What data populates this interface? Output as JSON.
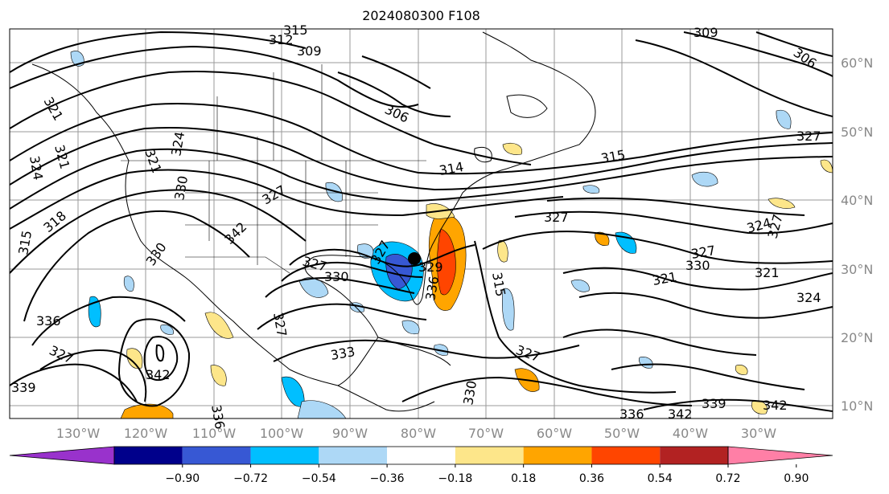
{
  "title": "2024080300 F108",
  "lon_labels": [
    "130°W",
    "120°W",
    "110°W",
    "100°W",
    "90°W",
    "80°W",
    "70°W",
    "60°W",
    "50°W",
    "40°W",
    "30°W"
  ],
  "lat_labels": [
    "60°N",
    "50°N",
    "40°N",
    "30°N",
    "20°N",
    "10°N"
  ],
  "contour_labels": [
    "315",
    "312",
    "309",
    "306",
    "309",
    "306",
    "327",
    "324",
    "321",
    "321",
    "324",
    "321",
    "315",
    "330",
    "342",
    "336",
    "318",
    "315",
    "330",
    "327",
    "330",
    "314",
    "327",
    "315",
    "324",
    "327",
    "327",
    "330",
    "321",
    "321",
    "324",
    "336",
    "327",
    "342",
    "339",
    "333",
    "327",
    "329",
    "336",
    "327",
    "330",
    "327",
    "339",
    "342",
    "336",
    "342",
    "327"
  ],
  "colorbar": {
    "ticks": [
      "−0.90",
      "−0.72",
      "−0.54",
      "−0.36",
      "−0.18",
      "0.18",
      "0.36",
      "0.54",
      "0.72",
      "0.90"
    ],
    "colors": [
      "#9932cc",
      "#00008b",
      "#3758d4",
      "#00bfff",
      "#add8f6",
      "#ffffff",
      "#fde68a",
      "#ffa500",
      "#ff4500",
      "#b22222",
      "#ff7fa6"
    ]
  }
}
